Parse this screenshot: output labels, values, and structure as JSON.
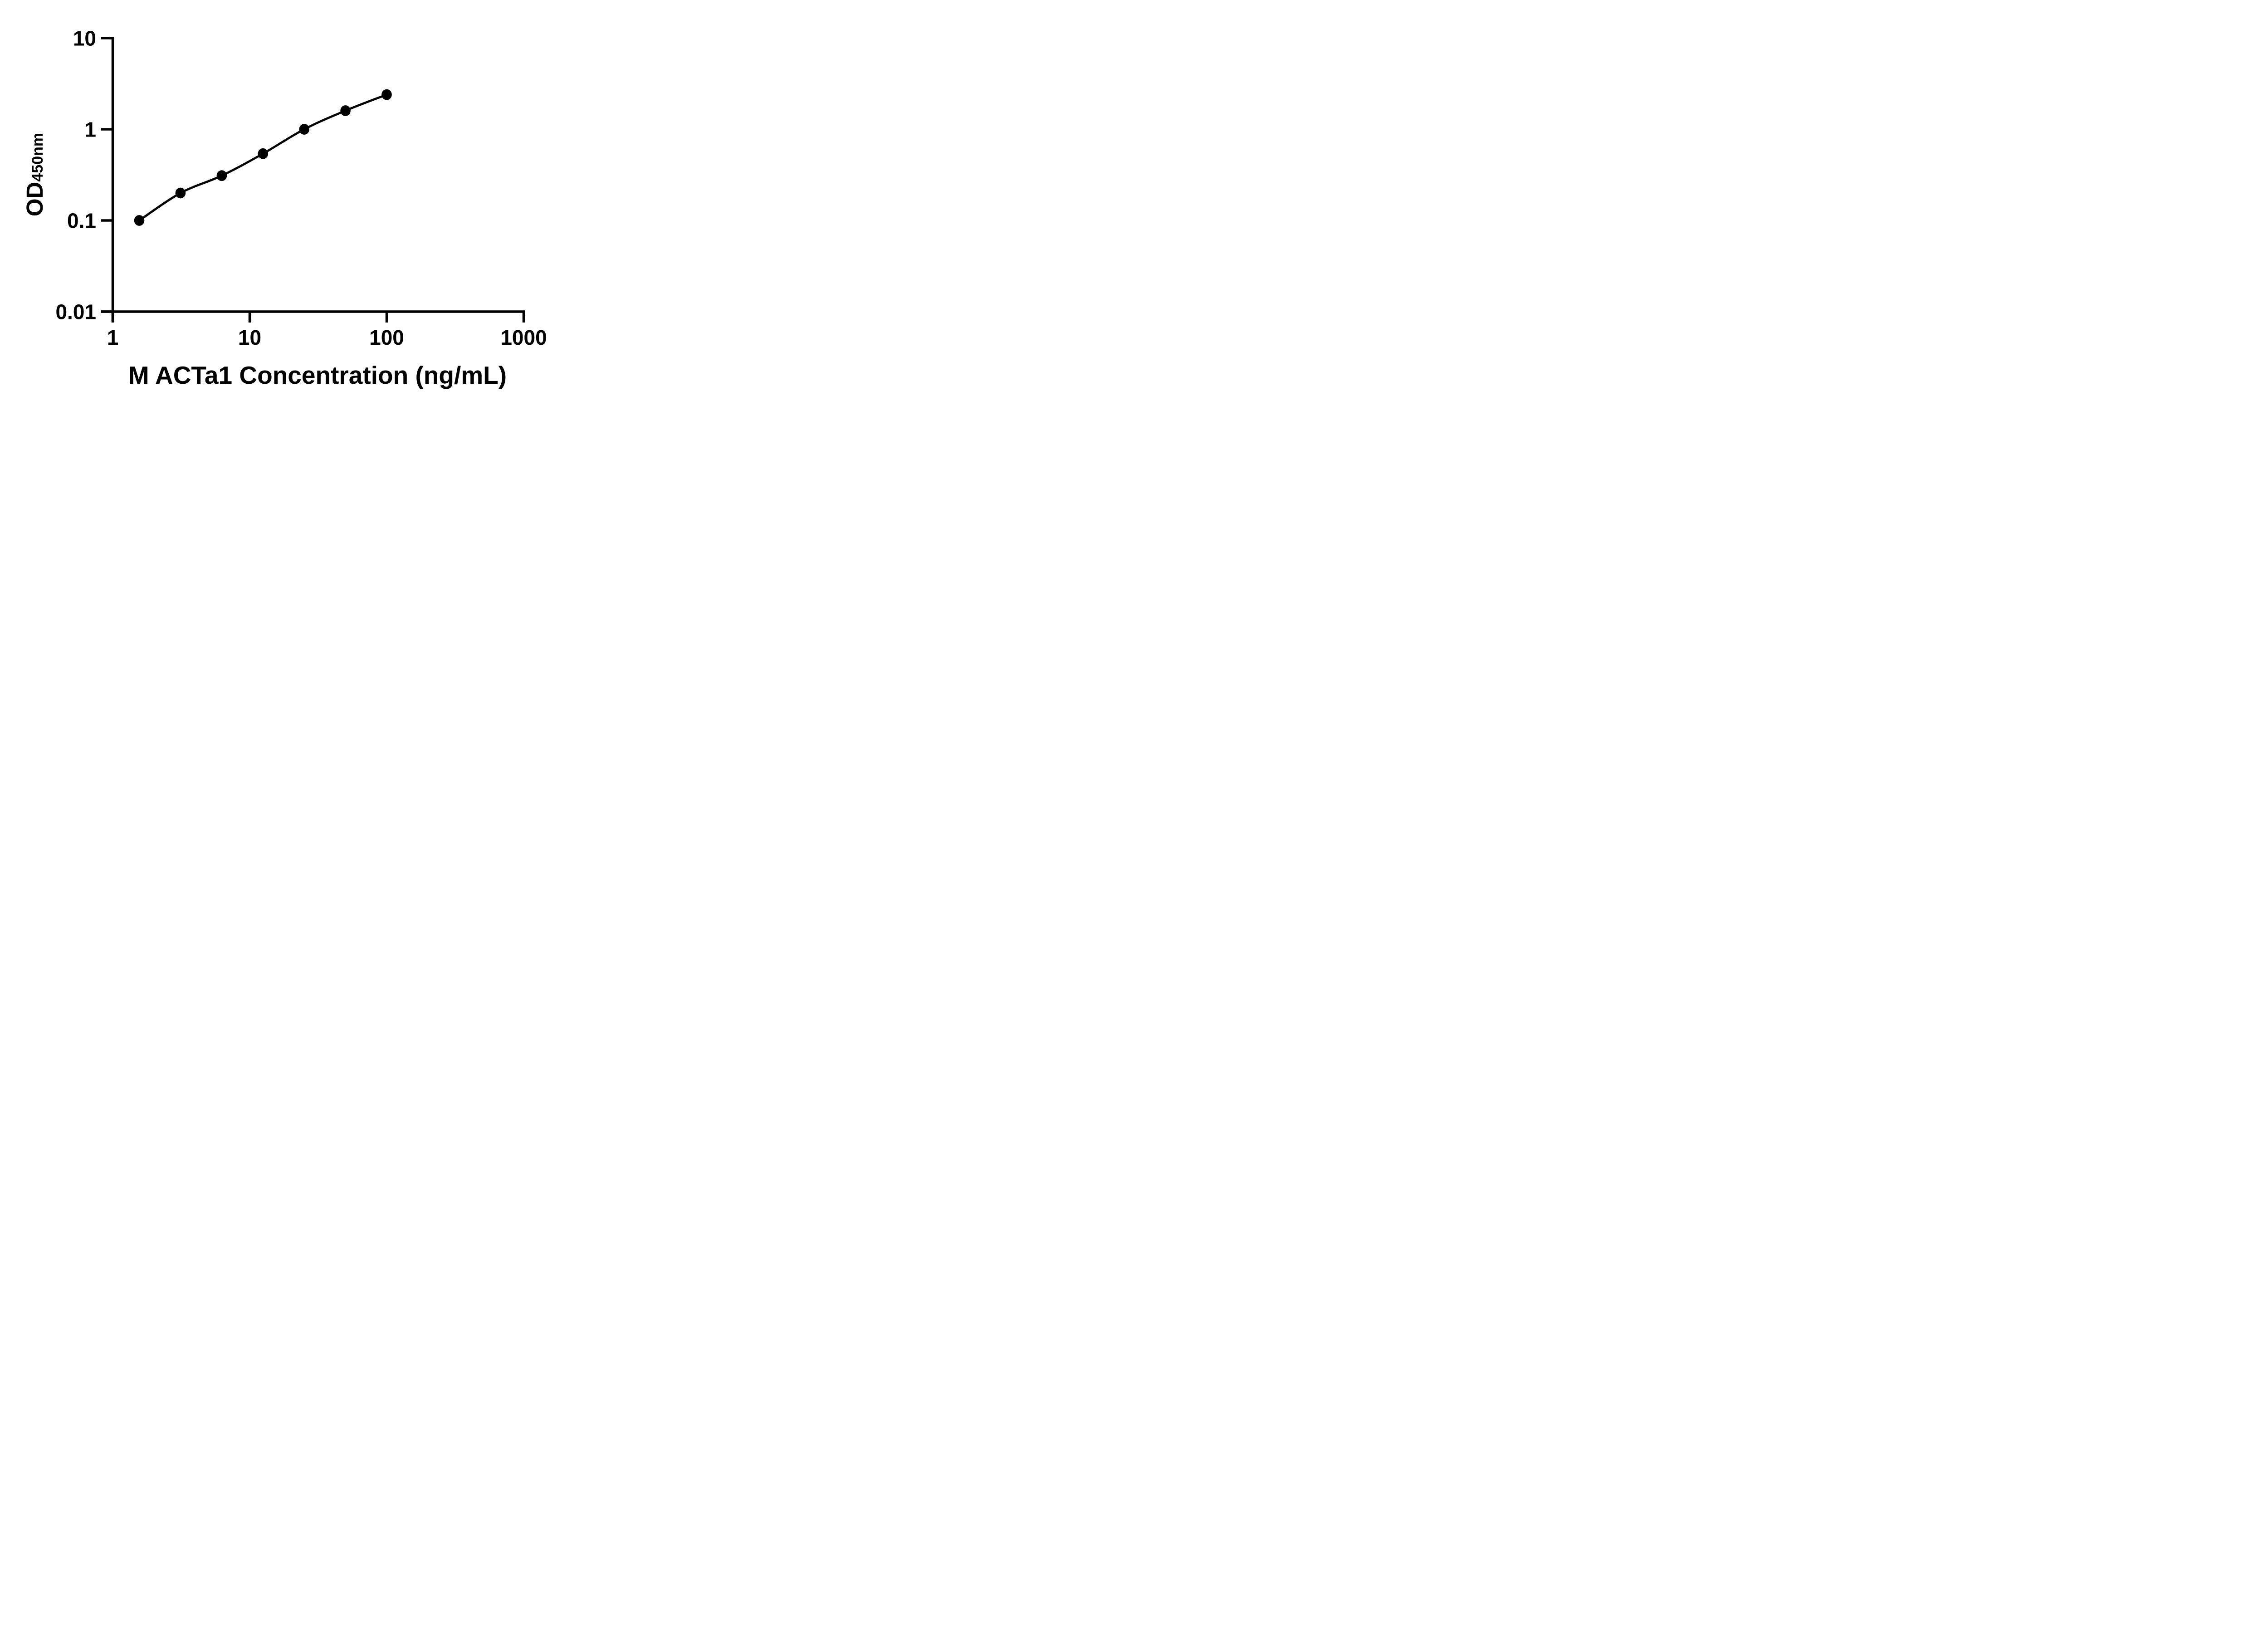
{
  "chart_data": {
    "type": "line",
    "title": "",
    "xlabel": "M ACTa1 Concentration (ng/mL)",
    "ylabel": "OD450nm",
    "ylabel_main": "OD",
    "ylabel_sub": "450nm",
    "x_scale": "log10",
    "y_scale": "log10",
    "xlim": [
      1,
      1000
    ],
    "ylim": [
      0.01,
      10
    ],
    "x_ticks": [
      "1",
      "10",
      "100",
      "1000"
    ],
    "x_tick_values": [
      1,
      10,
      100,
      1000
    ],
    "y_ticks": [
      "10",
      "1",
      "0.1",
      "0.01"
    ],
    "y_tick_values": [
      10,
      1,
      0.1,
      0.01
    ],
    "grid": false,
    "legend": false,
    "axis_color": "#000000",
    "line_color": "#000000",
    "marker_color": "#000000",
    "marker_shape": "filled-circle",
    "background_color": "#ffffff",
    "series": [
      {
        "x": [
          1.5625,
          3.125,
          6.25,
          12.5,
          25,
          50,
          100
        ],
        "y": [
          0.1,
          0.2,
          0.31,
          0.54,
          1.0,
          1.6,
          2.4
        ]
      }
    ]
  }
}
